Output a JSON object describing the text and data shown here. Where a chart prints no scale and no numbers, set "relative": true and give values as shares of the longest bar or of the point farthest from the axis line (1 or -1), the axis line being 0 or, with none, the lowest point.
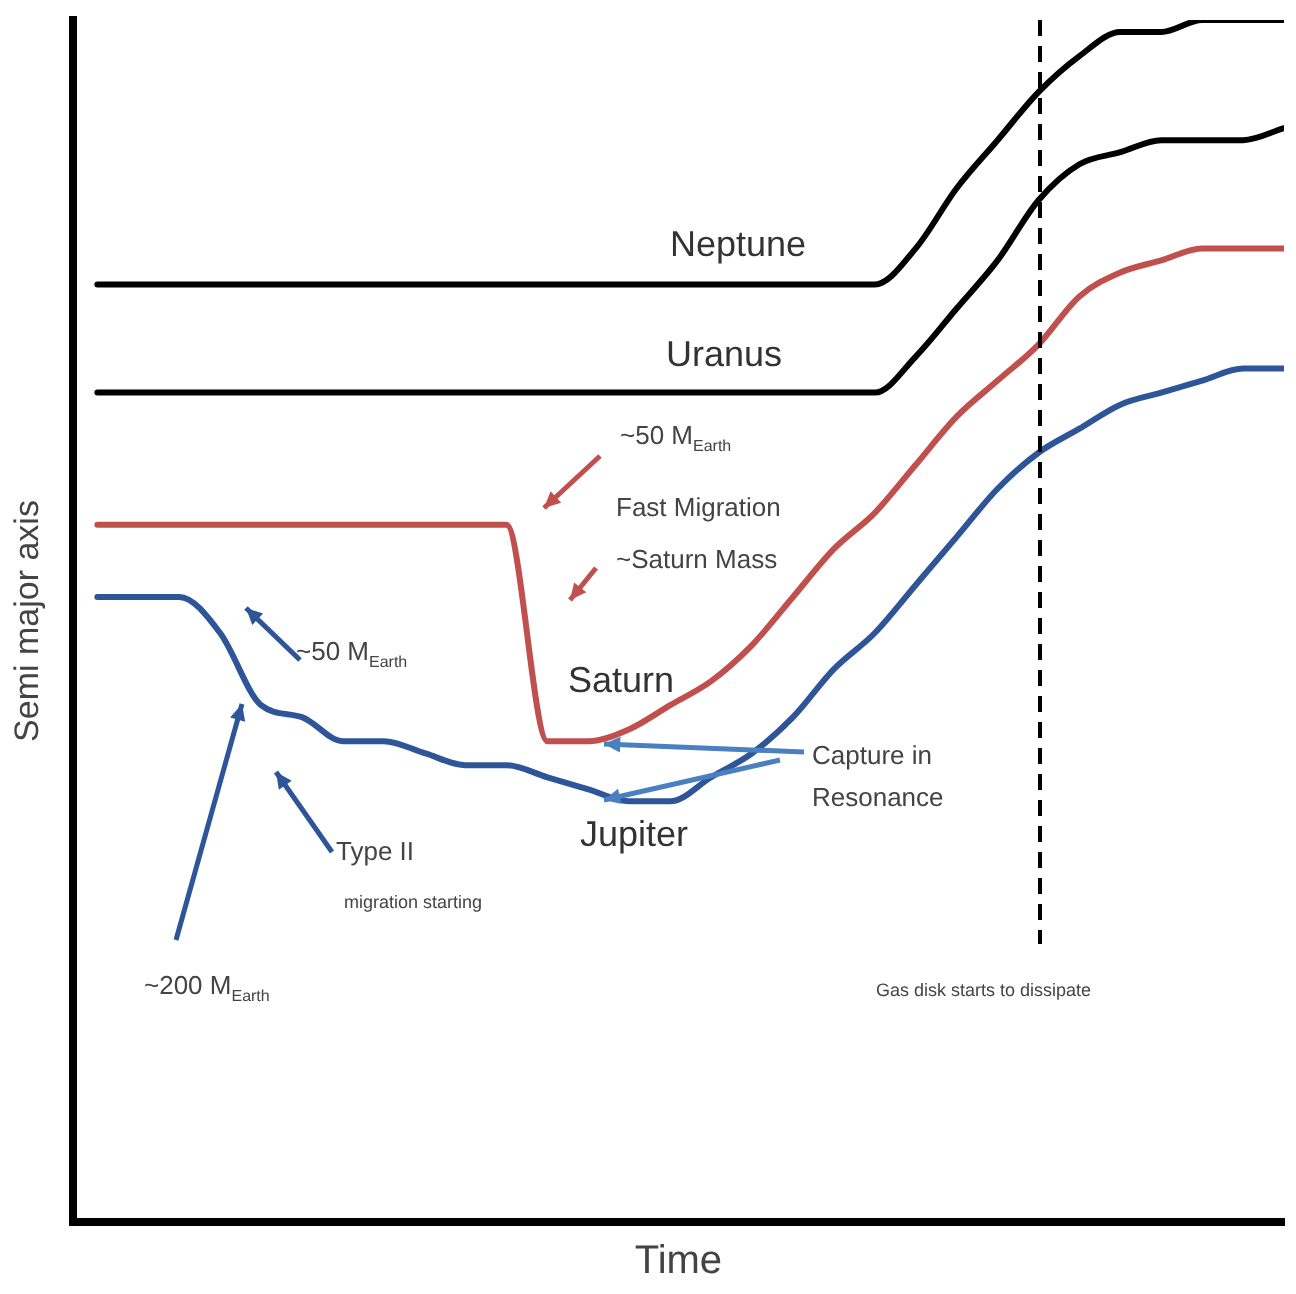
{
  "chart_data": {
    "type": "line",
    "relative": true,
    "xlabel": "Time",
    "ylabel": "Semi major axis",
    "categories": [
      null,
      null,
      null,
      null,
      null,
      null,
      null,
      null,
      null,
      null,
      null,
      null,
      null,
      null,
      null,
      null,
      null,
      null,
      null,
      null,
      null,
      null,
      null,
      null,
      null,
      null,
      null,
      null,
      null,
      null
    ],
    "series": [
      {
        "name": "Neptune",
        "color": "#000000",
        "values": [
          0.78,
          0.78,
          0.78,
          0.78,
          0.78,
          0.78,
          0.78,
          0.78,
          0.78,
          0.78,
          0.78,
          0.78,
          0.78,
          0.78,
          0.78,
          0.78,
          0.78,
          0.78,
          0.78,
          0.78,
          0.81,
          0.86,
          0.9,
          0.94,
          0.97,
          0.99,
          0.99,
          1.0,
          1.0,
          1.0
        ]
      },
      {
        "name": "Uranus",
        "color": "#000000",
        "values": [
          0.69,
          0.69,
          0.69,
          0.69,
          0.69,
          0.69,
          0.69,
          0.69,
          0.69,
          0.69,
          0.69,
          0.69,
          0.69,
          0.69,
          0.69,
          0.69,
          0.69,
          0.69,
          0.69,
          0.69,
          0.72,
          0.76,
          0.8,
          0.85,
          0.88,
          0.89,
          0.9,
          0.9,
          0.9,
          0.91
        ]
      },
      {
        "name": "Saturn",
        "color": "#c0504d",
        "values": [
          0.58,
          0.58,
          0.58,
          0.58,
          0.58,
          0.58,
          0.58,
          0.58,
          0.58,
          0.58,
          0.58,
          0.4,
          0.4,
          0.41,
          0.43,
          0.45,
          0.48,
          0.52,
          0.56,
          0.59,
          0.63,
          0.67,
          0.7,
          0.73,
          0.77,
          0.79,
          0.8,
          0.81,
          0.81,
          0.81
        ]
      },
      {
        "name": "Jupiter",
        "color": "#2e5597",
        "values": [
          0.52,
          0.52,
          0.52,
          0.49,
          0.43,
          0.42,
          0.4,
          0.4,
          0.39,
          0.38,
          0.38,
          0.37,
          0.36,
          0.35,
          0.35,
          0.37,
          0.39,
          0.42,
          0.46,
          0.49,
          0.53,
          0.57,
          0.61,
          0.64,
          0.66,
          0.68,
          0.69,
          0.7,
          0.71,
          0.71
        ]
      }
    ],
    "annotations": [
      "~50 M$_{Earth}$",
      "Fast Migration",
      "~Saturn Mass",
      "~50 M$_{Earth}$",
      "Type II",
      "migration starting",
      "~200 M$_{Earth}$",
      "Capture in Resonance",
      "Gas disk starts to dissipate"
    ],
    "line_style": "solid",
    "marker": "none",
    "legend": false
  }
}
